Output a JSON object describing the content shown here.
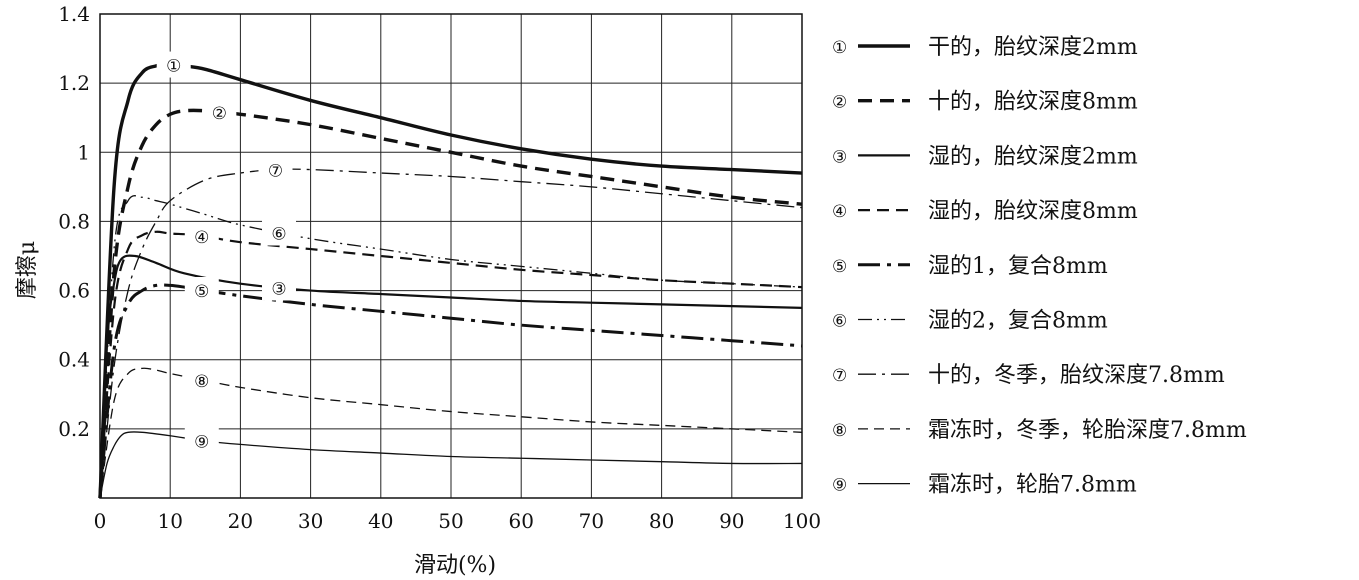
{
  "chart_data": {
    "type": "line",
    "xlabel": "滑动(%)",
    "ylabel": "摩擦μ",
    "xlim": [
      0,
      100
    ],
    "ylim": [
      0,
      1.4
    ],
    "x_ticks": [
      "0",
      "10",
      "20",
      "30",
      "40",
      "50",
      "60",
      "70",
      "80",
      "90",
      "100"
    ],
    "y_ticks": [
      "0.2",
      "0.4",
      "0.6",
      "0.8",
      "1",
      "1.2",
      "1.4"
    ],
    "grid": true,
    "legend_position": "right",
    "series": [
      {
        "marker": "①",
        "name": "干的，胎纹深度2mm",
        "style": "solid-thick",
        "x": [
          0,
          2,
          4,
          6,
          8,
          10,
          12,
          15,
          20,
          30,
          40,
          50,
          60,
          70,
          80,
          90,
          100
        ],
        "y": [
          0,
          0.9,
          1.15,
          1.23,
          1.25,
          1.255,
          1.25,
          1.24,
          1.21,
          1.15,
          1.1,
          1.05,
          1.01,
          0.98,
          0.96,
          0.95,
          0.94
        ]
      },
      {
        "marker": "②",
        "name": "十的，胎纹深度8mm",
        "style": "dash-thick",
        "x": [
          0,
          2,
          4,
          6,
          8,
          10,
          12,
          15,
          20,
          30,
          40,
          50,
          60,
          70,
          80,
          90,
          100
        ],
        "y": [
          0,
          0.65,
          0.9,
          1.02,
          1.08,
          1.11,
          1.12,
          1.12,
          1.11,
          1.08,
          1.04,
          1.0,
          0.96,
          0.93,
          0.9,
          0.87,
          0.85
        ]
      },
      {
        "marker": "③",
        "name": "湿的，胎纹深度2mm",
        "style": "solid-medium",
        "x": [
          0,
          1,
          2,
          3,
          5,
          8,
          12,
          20,
          30,
          40,
          50,
          60,
          70,
          80,
          90,
          100
        ],
        "y": [
          0,
          0.45,
          0.62,
          0.69,
          0.7,
          0.68,
          0.65,
          0.62,
          0.6,
          0.59,
          0.58,
          0.57,
          0.565,
          0.56,
          0.555,
          0.55
        ]
      },
      {
        "marker": "④",
        "name": "湿的，胎纹深度8mm",
        "style": "dash-medium",
        "x": [
          0,
          2,
          4,
          6,
          8,
          10,
          14,
          20,
          30,
          40,
          50,
          60,
          70,
          80,
          90,
          100
        ],
        "y": [
          0,
          0.55,
          0.72,
          0.76,
          0.77,
          0.765,
          0.76,
          0.74,
          0.72,
          0.7,
          0.68,
          0.66,
          0.645,
          0.63,
          0.62,
          0.61
        ]
      },
      {
        "marker": "⑤",
        "name": "湿的1，复合8mm",
        "style": "dashdot-thick",
        "x": [
          0,
          2,
          4,
          6,
          8,
          10,
          12,
          15,
          20,
          30,
          40,
          50,
          60,
          70,
          80,
          90,
          100
        ],
        "y": [
          0,
          0.43,
          0.56,
          0.6,
          0.615,
          0.615,
          0.61,
          0.6,
          0.585,
          0.56,
          0.54,
          0.52,
          0.5,
          0.485,
          0.47,
          0.455,
          0.44
        ]
      },
      {
        "marker": "⑥",
        "name": "湿的2，复合8mm",
        "style": "dashdotdot-thin",
        "x": [
          0,
          2,
          4,
          6,
          8,
          10,
          15,
          20,
          30,
          40,
          50,
          60,
          70,
          80,
          90,
          100
        ],
        "y": [
          0,
          0.72,
          0.86,
          0.87,
          0.86,
          0.85,
          0.82,
          0.79,
          0.75,
          0.72,
          0.69,
          0.67,
          0.65,
          0.63,
          0.62,
          0.61
        ]
      },
      {
        "marker": "⑦",
        "name": "十的，冬季，胎纹深度7.8mm",
        "style": "dashdot-thin",
        "x": [
          0,
          2,
          4,
          6,
          8,
          10,
          15,
          20,
          25,
          30,
          40,
          50,
          60,
          70,
          80,
          90,
          100
        ],
        "y": [
          0,
          0.38,
          0.6,
          0.72,
          0.8,
          0.86,
          0.92,
          0.94,
          0.95,
          0.95,
          0.94,
          0.93,
          0.915,
          0.9,
          0.88,
          0.86,
          0.84
        ]
      },
      {
        "marker": "⑧",
        "name": "霜冻时，冬季，轮胎深度7.8mm",
        "style": "dash-thin",
        "x": [
          0,
          2,
          4,
          6,
          8,
          10,
          15,
          20,
          30,
          40,
          50,
          60,
          70,
          80,
          90,
          100
        ],
        "y": [
          0,
          0.28,
          0.36,
          0.375,
          0.37,
          0.36,
          0.34,
          0.32,
          0.29,
          0.27,
          0.25,
          0.235,
          0.22,
          0.21,
          0.2,
          0.19
        ]
      },
      {
        "marker": "⑨",
        "name": "霜冻时，轮胎7.8mm",
        "style": "solid-thin",
        "x": [
          0,
          1,
          2,
          3,
          4,
          6,
          10,
          15,
          20,
          30,
          40,
          50,
          60,
          70,
          80,
          90,
          100
        ],
        "y": [
          0,
          0.1,
          0.15,
          0.18,
          0.19,
          0.19,
          0.18,
          0.165,
          0.155,
          0.14,
          0.13,
          0.12,
          0.115,
          0.11,
          0.105,
          0.1,
          0.1
        ]
      }
    ]
  }
}
